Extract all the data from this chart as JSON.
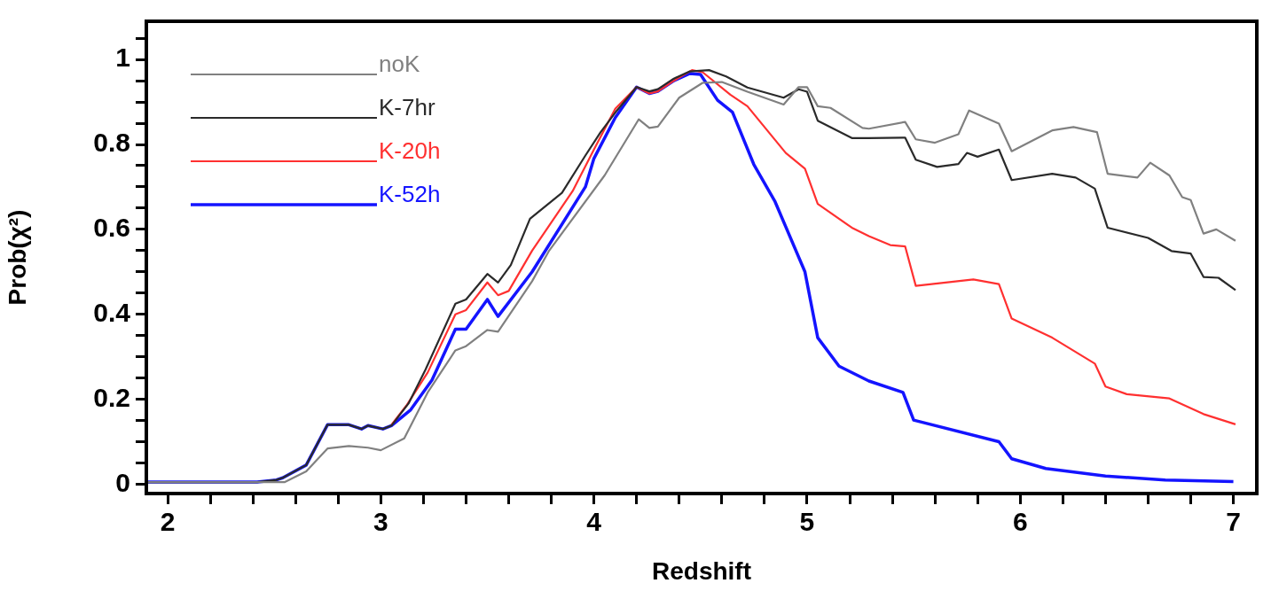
{
  "chart_data": {
    "type": "line",
    "xlabel": "Redshift",
    "ylabel": "Prob(χ²)",
    "xlim": [
      1.9,
      7.11
    ],
    "ylim": [
      -0.022,
      1.09
    ],
    "xticks": [
      2,
      {
        "value": 2.2,
        "label": null
      },
      {
        "value": 2.4,
        "label": null
      },
      {
        "value": 2.6,
        "label": null
      },
      {
        "value": 2.8,
        "label": null
      },
      3,
      {
        "value": 3.2,
        "label": null
      },
      {
        "value": 3.4,
        "label": null
      },
      {
        "value": 3.6,
        "label": null
      },
      {
        "value": 3.8,
        "label": null
      },
      4,
      {
        "value": 4.2,
        "label": null
      },
      {
        "value": 4.4,
        "label": null
      },
      {
        "value": 4.6,
        "label": null
      },
      {
        "value": 4.8,
        "label": null
      },
      5,
      {
        "value": 5.2,
        "label": null
      },
      {
        "value": 5.4,
        "label": null
      },
      {
        "value": 5.6,
        "label": null
      },
      {
        "value": 5.8,
        "label": null
      },
      6,
      {
        "value": 6.2,
        "label": null
      },
      {
        "value": 6.4,
        "label": null
      },
      {
        "value": 6.6,
        "label": null
      },
      {
        "value": 6.8,
        "label": null
      },
      7
    ],
    "yticks": [
      0,
      {
        "value": 0.05,
        "label": null
      },
      {
        "value": 0.1,
        "label": null
      },
      {
        "value": 0.15,
        "label": null
      },
      0.2,
      {
        "value": 0.25,
        "label": null
      },
      {
        "value": 0.3,
        "label": null
      },
      {
        "value": 0.35,
        "label": null
      },
      0.4,
      {
        "value": 0.45,
        "label": null
      },
      {
        "value": 0.5,
        "label": null
      },
      {
        "value": 0.55,
        "label": null
      },
      0.6,
      {
        "value": 0.65,
        "label": null
      },
      {
        "value": 0.7,
        "label": null
      },
      {
        "value": 0.75,
        "label": null
      },
      0.8,
      {
        "value": 0.85,
        "label": null
      },
      {
        "value": 0.9,
        "label": null
      },
      {
        "value": 0.95,
        "label": null
      },
      1,
      {
        "value": 1.05,
        "label": null
      }
    ],
    "grid": false,
    "legend": "top left",
    "marker": "none",
    "series": [
      {
        "name": "noK",
        "color": "#808080",
        "x": [
          1.9,
          2.42,
          2.55,
          2.65,
          2.75,
          2.85,
          2.94,
          3.0,
          3.11,
          3.22,
          3.35,
          3.4,
          3.5,
          3.55,
          3.71,
          3.79,
          4.05,
          4.21,
          4.26,
          4.3,
          4.4,
          4.51,
          4.6,
          4.72,
          4.89,
          4.96,
          5.0,
          5.05,
          5.11,
          5.26,
          5.29,
          5.46,
          5.51,
          5.6,
          5.71,
          5.76,
          5.9,
          5.96,
          6.15,
          6.25,
          6.36,
          6.41,
          6.55,
          6.61,
          6.7,
          6.76,
          6.8,
          6.86,
          6.92,
          7.01
        ],
        "values": [
          0.005,
          0.005,
          0.005,
          0.03,
          0.084,
          0.09,
          0.086,
          0.08,
          0.108,
          0.216,
          0.315,
          0.325,
          0.363,
          0.359,
          0.478,
          0.55,
          0.727,
          0.859,
          0.839,
          0.842,
          0.91,
          0.945,
          0.947,
          0.924,
          0.894,
          0.935,
          0.935,
          0.89,
          0.886,
          0.839,
          0.837,
          0.853,
          0.812,
          0.804,
          0.824,
          0.88,
          0.849,
          0.784,
          0.833,
          0.841,
          0.829,
          0.731,
          0.722,
          0.757,
          0.727,
          0.676,
          0.669,
          0.59,
          0.6,
          0.573
        ]
      },
      {
        "name": "K-7hr",
        "color": "#2a2a2a",
        "x": [
          1.9,
          2.42,
          2.51,
          2.54,
          2.65,
          2.75,
          2.85,
          2.91,
          2.94,
          3.01,
          3.05,
          3.13,
          3.21,
          3.35,
          3.4,
          3.5,
          3.55,
          3.61,
          3.7,
          3.85,
          3.96,
          4.03,
          4.1,
          4.2,
          4.26,
          4.3,
          4.375,
          4.45,
          4.54,
          4.62,
          4.72,
          4.89,
          4.96,
          5.0,
          5.05,
          5.21,
          5.29,
          5.46,
          5.51,
          5.61,
          5.71,
          5.75,
          5.8,
          5.9,
          5.96,
          6.15,
          6.26,
          6.35,
          6.41,
          6.6,
          6.71,
          6.8,
          6.86,
          6.93,
          7.01
        ],
        "values": [
          0.005,
          0.005,
          0.01,
          0.015,
          0.045,
          0.14,
          0.14,
          0.13,
          0.138,
          0.13,
          0.138,
          0.19,
          0.27,
          0.425,
          0.435,
          0.495,
          0.475,
          0.516,
          0.625,
          0.686,
          0.774,
          0.828,
          0.875,
          0.935,
          0.925,
          0.93,
          0.955,
          0.972,
          0.975,
          0.96,
          0.934,
          0.91,
          0.93,
          0.924,
          0.856,
          0.815,
          0.815,
          0.816,
          0.764,
          0.747,
          0.754,
          0.78,
          0.771,
          0.788,
          0.716,
          0.731,
          0.722,
          0.696,
          0.604,
          0.58,
          0.549,
          0.543,
          0.488,
          0.486,
          0.457
        ]
      },
      {
        "name": "K-20h",
        "color": "#ff3030",
        "x": [
          3.05,
          3.12,
          3.22,
          3.35,
          3.4,
          3.5,
          3.55,
          3.6,
          3.71,
          3.9,
          4.0,
          4.1,
          4.2,
          4.26,
          4.3,
          4.375,
          4.46,
          4.51,
          4.64,
          4.72,
          4.9,
          4.99,
          5.05,
          5.21,
          5.29,
          5.39,
          5.46,
          5.51,
          5.78,
          5.9,
          5.96,
          6.15,
          6.35,
          6.4,
          6.5,
          6.7,
          6.86,
          7.01
        ],
        "values": [
          0.14,
          0.185,
          0.263,
          0.4,
          0.41,
          0.475,
          0.445,
          0.455,
          0.55,
          0.69,
          0.788,
          0.884,
          0.935,
          0.92,
          0.925,
          0.95,
          0.975,
          0.97,
          0.917,
          0.89,
          0.78,
          0.743,
          0.66,
          0.604,
          0.584,
          0.563,
          0.56,
          0.467,
          0.482,
          0.471,
          0.39,
          0.345,
          0.284,
          0.23,
          0.212,
          0.202,
          0.165,
          0.141
        ]
      },
      {
        "name": "K-52h",
        "color": "#1414ff",
        "x": [
          1.9,
          2.42,
          2.51,
          2.54,
          2.65,
          2.75,
          2.85,
          2.91,
          2.94,
          3.01,
          3.05,
          3.14,
          3.24,
          3.35,
          3.4,
          3.5,
          3.55,
          3.71,
          3.96,
          4.0,
          4.1,
          4.2,
          4.26,
          4.3,
          4.375,
          4.45,
          4.5,
          4.58,
          4.65,
          4.75,
          4.85,
          4.99,
          5.05,
          5.15,
          5.29,
          5.45,
          5.5,
          5.9,
          5.96,
          6.12,
          6.4,
          6.68,
          7.0
        ],
        "values": [
          0.005,
          0.005,
          0.01,
          0.015,
          0.045,
          0.14,
          0.14,
          0.13,
          0.138,
          0.13,
          0.138,
          0.175,
          0.245,
          0.365,
          0.365,
          0.435,
          0.395,
          0.5,
          0.7,
          0.767,
          0.863,
          0.935,
          0.92,
          0.925,
          0.95,
          0.967,
          0.965,
          0.904,
          0.876,
          0.753,
          0.665,
          0.5,
          0.345,
          0.278,
          0.243,
          0.216,
          0.151,
          0.1,
          0.06,
          0.037,
          0.019,
          0.01,
          0.006
        ]
      }
    ]
  }
}
